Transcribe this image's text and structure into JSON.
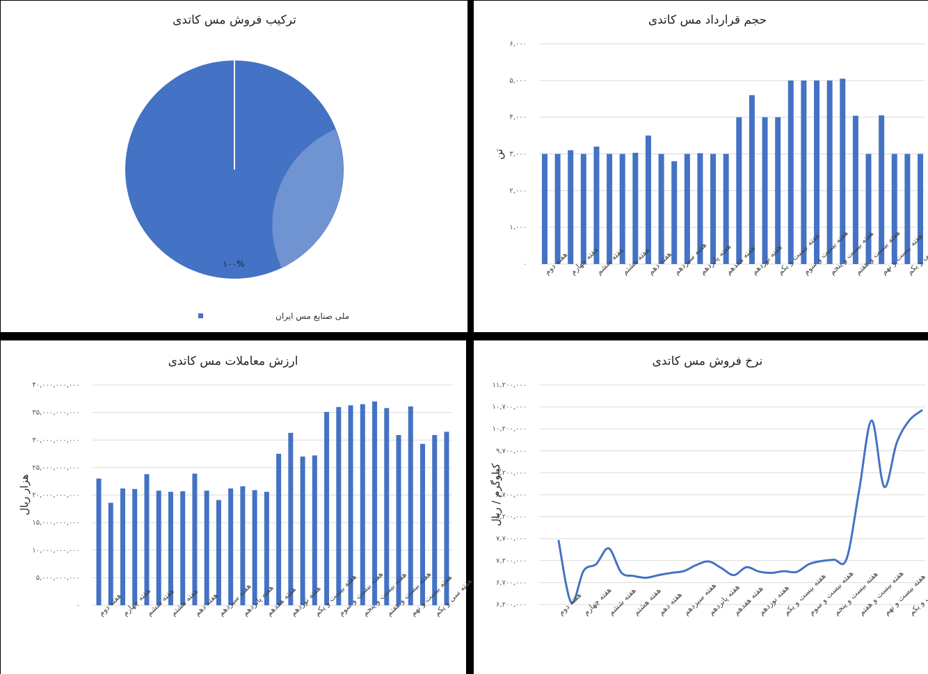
{
  "colors": {
    "bar": "#4472c4",
    "line": "#4472c4",
    "panel": "#ffffff",
    "background": "#000000",
    "pie_highlight": "#7c9bd4"
  },
  "chart_data": [
    {
      "type": "pie",
      "title": "ترکیب فروش مس کاتدی",
      "slices": [
        {
          "label": "ملی صنایع مس ایران",
          "value": 100,
          "data_label": "۱۰۰%"
        }
      ],
      "legend": "bottom"
    },
    {
      "type": "bar",
      "title": "حجم قرارداد مس کاتدی",
      "ylabel": "تن",
      "ylim": [
        0,
        6000
      ],
      "yticks": [
        "۰",
        "۱,۰۰۰",
        "۲,۰۰۰",
        "۳,۰۰۰",
        "۴,۰۰۰",
        "۵,۰۰۰",
        "۶,۰۰۰"
      ],
      "xtick_labels": [
        "هفته دوم",
        "هفته چهارم",
        "هفته ششم",
        "هفته هشتم",
        "هفته دهم",
        "هفته سیزدهم",
        "هفته پانزدهم",
        "هفته هفدهم",
        "هفته نوزدهم",
        "هفته بیست و یکم",
        "هفته بیست و سوم",
        "هفته بیست و پنجم",
        "هفته بیست و هفتم",
        "هفته بیست و نهم",
        "هفته سی و یکم"
      ],
      "values": [
        3000,
        3000,
        3100,
        3000,
        3200,
        3000,
        3000,
        3030,
        3500,
        3000,
        2800,
        3000,
        3020,
        3000,
        3000,
        4000,
        4600,
        4000,
        4000,
        5000,
        5000,
        5000,
        5000,
        5050,
        4040,
        3000,
        4050,
        3000,
        3000,
        3000
      ],
      "grid": true
    },
    {
      "type": "bar",
      "title": "ارزش معاملات مس کاتدی",
      "ylabel": "هزار ریال",
      "ylim": [
        0,
        40000000000
      ],
      "yticks": [
        "۰",
        "۵,۰۰۰,۰۰۰,۰۰۰",
        "۱۰,۰۰۰,۰۰۰,۰۰۰",
        "۱۵,۰۰۰,۰۰۰,۰۰۰",
        "۲۰,۰۰۰,۰۰۰,۰۰۰",
        "۲۵,۰۰۰,۰۰۰,۰۰۰",
        "۳۰,۰۰۰,۰۰۰,۰۰۰",
        "۳۵,۰۰۰,۰۰۰,۰۰۰",
        "۴۰,۰۰۰,۰۰۰,۰۰۰"
      ],
      "xtick_labels": [
        "هفته دوم",
        "هفته چهارم",
        "هفته ششم",
        "هفته هشتم",
        "هفته دهم",
        "هفته سیزدهم",
        "هفته پانزدهم",
        "هفته هفدهم",
        "هفته نوزدهم",
        "هفته بیست و یکم",
        "هفته بیست و سوم",
        "هفته بیست و پنجم",
        "هفته بیست و هفتم",
        "هفته بیست و نهم",
        "هفته سی و یکم"
      ],
      "values": [
        23000000000,
        18600000000,
        21200000000,
        21100000000,
        23800000000,
        20800000000,
        20600000000,
        20700000000,
        23900000000,
        20800000000,
        19100000000,
        21200000000,
        21600000000,
        20900000000,
        20600000000,
        27500000000,
        31300000000,
        27000000000,
        27200000000,
        35100000000,
        36000000000,
        36300000000,
        36500000000,
        37000000000,
        35800000000,
        30900000000,
        36100000000,
        29300000000,
        30900000000,
        31500000000
      ],
      "grid": true
    },
    {
      "type": "line",
      "title": "نرخ فروش مس کاتدی",
      "ylabel": "کیلوگرم / ریال",
      "ylim": [
        6200000,
        11200000
      ],
      "yticks": [
        "۶,۲۰۰,۰۰۰",
        "۶,۷۰۰,۰۰۰",
        "۷,۲۰۰,۰۰۰",
        "۷,۷۰۰,۰۰۰",
        "۸,۲۰۰,۰۰۰",
        "۸,۷۰۰,۰۰۰",
        "۹,۲۰۰,۰۰۰",
        "۹,۷۰۰,۰۰۰",
        "۱۰,۲۰۰,۰۰۰",
        "۱۰,۷۰۰,۰۰۰",
        "۱۱,۲۰۰,۰۰۰"
      ],
      "xtick_labels": [
        "هفته دوم",
        "هفته چهارم",
        "هفته ششم",
        "هفته هشتم",
        "هفته دهم",
        "هفته سیزدهم",
        "هفته پانزدهم",
        "هفته هفدهم",
        "هفته نوزدهم",
        "هفته بیست و یکم",
        "هفته بیست و سوم",
        "هفته بیست و پنجم",
        "هفته بیست و هفتم",
        "هفته بیست و نهم",
        "هفته سی و یکم"
      ],
      "values": [
        7650000,
        6250000,
        6970000,
        7120000,
        7480000,
        6930000,
        6850000,
        6810000,
        6870000,
        6920000,
        6960000,
        7100000,
        7180000,
        7030000,
        6870000,
        7050000,
        6950000,
        6920000,
        6960000,
        6940000,
        7120000,
        7190000,
        7220000,
        7240000,
        8800000,
        10390000,
        8880000,
        9880000,
        10390000,
        10620000
      ],
      "grid": true
    }
  ]
}
